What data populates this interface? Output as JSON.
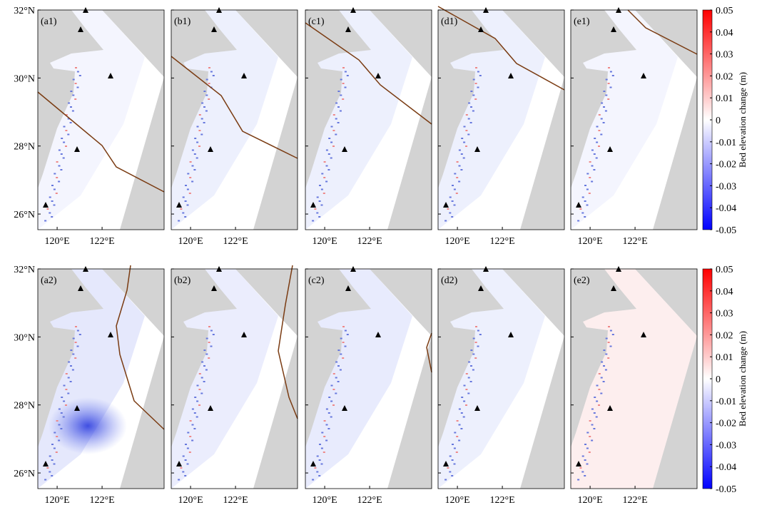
{
  "panels": [
    [
      "(a1)",
      "(b1)",
      "(c1)",
      "(d1)",
      "(e1)"
    ],
    [
      "(a2)",
      "(b2)",
      "(c2)",
      "(d2)",
      "(e2)"
    ]
  ],
  "lat_lim": [
    25.54,
    32
  ],
  "lon_lim": [
    119.14,
    124.76
  ],
  "lat_ticks": [
    {
      "value": 32,
      "label": "32°N"
    },
    {
      "value": 30,
      "label": "30°N"
    },
    {
      "value": 28,
      "label": "28°N"
    },
    {
      "value": 26,
      "label": "26°N"
    }
  ],
  "lon_ticks": [
    {
      "value": 120,
      "label": "120°E"
    },
    {
      "value": 122,
      "label": "122°E"
    }
  ],
  "colorbar": {
    "label": "Bed elevation change (m)",
    "lim": [
      -0.05,
      0.05
    ],
    "ticks": [
      0.05,
      0.04,
      0.03,
      0.02,
      0.01,
      0,
      -0.01,
      -0.02,
      -0.03,
      -0.04,
      -0.05
    ]
  }
}
